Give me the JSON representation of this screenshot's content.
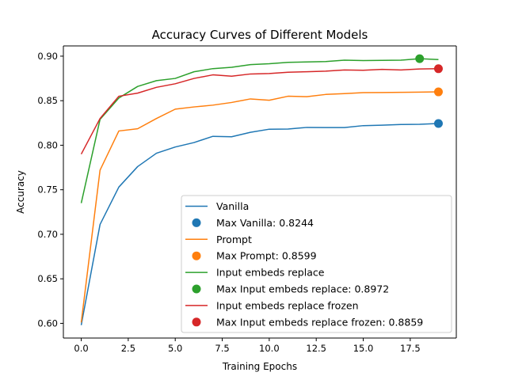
{
  "chart_data": {
    "type": "line",
    "title": "Accuracy Curves of Different Models",
    "xlabel": "Training Epochs",
    "ylabel": "Accuracy",
    "xlim": [
      -0.95,
      19.95
    ],
    "ylim": [
      0.5835,
      0.9115
    ],
    "x_ticks": [
      0.0,
      2.5,
      5.0,
      7.5,
      10.0,
      12.5,
      15.0,
      17.5
    ],
    "x_tick_labels": [
      "0.0",
      "2.5",
      "5.0",
      "7.5",
      "10.0",
      "12.5",
      "15.0",
      "17.5"
    ],
    "y_ticks": [
      0.6,
      0.65,
      0.7,
      0.75,
      0.8,
      0.85,
      0.9
    ],
    "y_tick_labels": [
      "0.60",
      "0.65",
      "0.70",
      "0.75",
      "0.80",
      "0.85",
      "0.90"
    ],
    "grid": false,
    "legend_position": "lower-right",
    "x": [
      0,
      1,
      2,
      3,
      4,
      5,
      6,
      7,
      8,
      9,
      10,
      11,
      12,
      13,
      14,
      15,
      16,
      17,
      18,
      19
    ],
    "series": [
      {
        "name": "Vanilla",
        "color": "#1f77b4",
        "values": [
          0.598,
          0.711,
          0.753,
          0.776,
          0.791,
          0.798,
          0.803,
          0.81,
          0.8095,
          0.8145,
          0.818,
          0.8182,
          0.82,
          0.8198,
          0.8198,
          0.822,
          0.8225,
          0.8233,
          0.8235,
          0.8244
        ],
        "max_label": "Max Vanilla: 0.8244",
        "max_x": 19,
        "max_value": 0.8244
      },
      {
        "name": "Prompt",
        "color": "#ff7f0e",
        "values": [
          0.601,
          0.772,
          0.816,
          0.8185,
          0.83,
          0.8405,
          0.843,
          0.845,
          0.848,
          0.852,
          0.8505,
          0.855,
          0.8545,
          0.857,
          0.858,
          0.859,
          0.8592,
          0.8594,
          0.8596,
          0.8599
        ],
        "max_label": "Max Prompt: 0.8599",
        "max_x": 19,
        "max_value": 0.8599
      },
      {
        "name": "Input embeds replace",
        "color": "#2ca02c",
        "values": [
          0.735,
          0.829,
          0.853,
          0.866,
          0.8725,
          0.875,
          0.8825,
          0.886,
          0.8875,
          0.8905,
          0.8915,
          0.893,
          0.8935,
          0.894,
          0.8955,
          0.895,
          0.8953,
          0.8955,
          0.8972,
          0.8962
        ],
        "max_label": "Max Input embeds replace: 0.8972",
        "max_x": 18,
        "max_value": 0.8972
      },
      {
        "name": "Input embeds replace frozen",
        "color": "#d62728",
        "values": [
          0.79,
          0.83,
          0.855,
          0.8585,
          0.865,
          0.869,
          0.875,
          0.879,
          0.8775,
          0.88,
          0.8805,
          0.882,
          0.8825,
          0.8832,
          0.8845,
          0.8842,
          0.8852,
          0.8845,
          0.8856,
          0.8859
        ],
        "max_label": "Max Input embeds replace frozen: 0.8859",
        "max_x": 19,
        "max_value": 0.8859
      }
    ]
  }
}
